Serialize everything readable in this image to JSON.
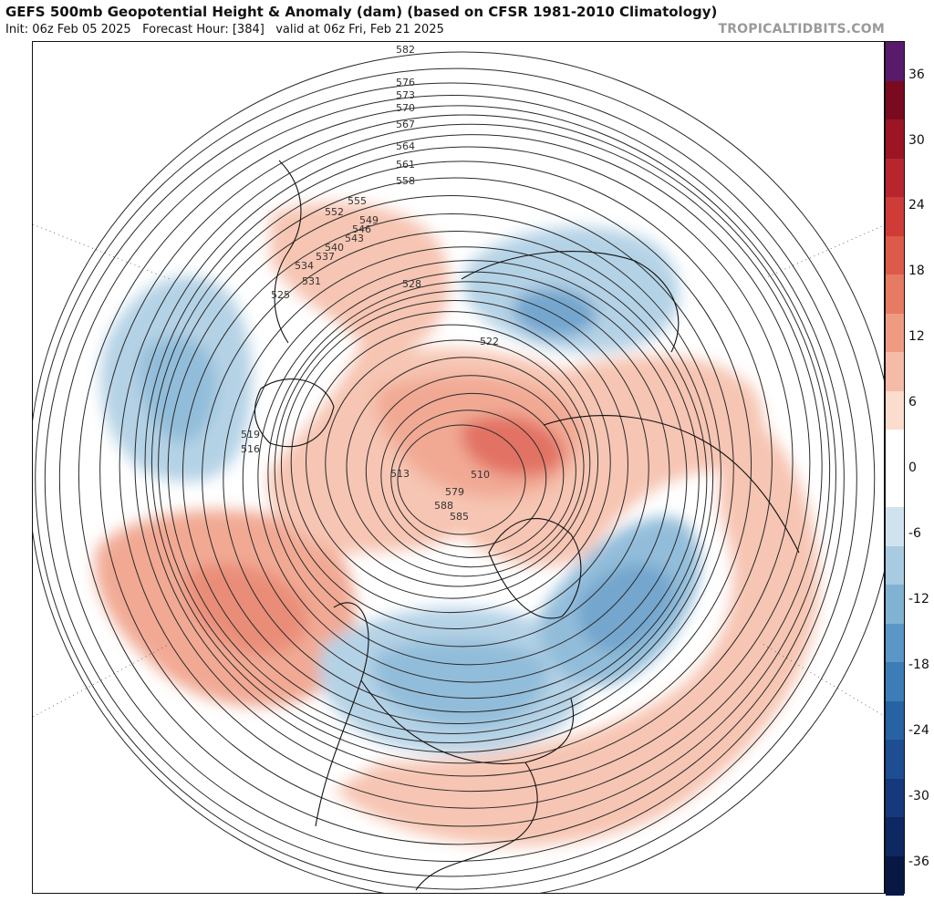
{
  "header": {
    "title": "GEFS 500mb Geopotential Height & Anomaly (dam) (based on CFSR 1981-2010 Climatology)",
    "init": "Init: 06z Feb 05 2025",
    "forecast_hour": "Forecast Hour: [384]",
    "valid": "valid at 06z Fri, Feb 21 2025",
    "credit": "TROPICALTIDBITS.COM"
  },
  "map": {
    "projection": "north-polar-stereographic",
    "contour_color": "#2a2a2a",
    "coastline_color": "#111111",
    "anomaly_positive_color": "#e9886b",
    "anomaly_negative_color": "#4f8fc4",
    "anomalies": [
      {
        "region": "North Pacific / Alaska",
        "sign": "positive",
        "strength": 12
      },
      {
        "region": "Arctic / Siberia",
        "sign": "positive",
        "strength": 12
      },
      {
        "region": "Hudson Bay / Eastern Canada",
        "sign": "negative",
        "strength": -18
      },
      {
        "region": "West of Greenland / Baffin",
        "sign": "negative",
        "strength": -18
      },
      {
        "region": "Siberia / Okhotsk",
        "sign": "negative",
        "strength": -12
      },
      {
        "region": "Eastern Europe",
        "sign": "positive",
        "strength": 12
      },
      {
        "region": "North Atlantic",
        "sign": "positive",
        "strength": 6
      }
    ],
    "contour_labels": [
      "582",
      "576",
      "573",
      "570",
      "567",
      "564",
      "561",
      "558",
      "555",
      "552",
      "549",
      "546",
      "543",
      "540",
      "537",
      "534",
      "531",
      "528",
      "525",
      "522",
      "519",
      "516",
      "513",
      "510",
      "579",
      "588",
      "585"
    ]
  },
  "colorbar": {
    "ticks": [
      "36",
      "30",
      "24",
      "18",
      "12",
      "6",
      "0",
      "-6",
      "-12",
      "-18",
      "-24",
      "-30",
      "-36"
    ],
    "colors": [
      "#5a1a6b",
      "#7a0a1f",
      "#9b1525",
      "#b8262d",
      "#cf3c37",
      "#de5a48",
      "#e67a62",
      "#ef9b82",
      "#f5bba6",
      "#fbdccd",
      "#ffffff",
      "#ffffff",
      "#cfe3ef",
      "#a8cbe2",
      "#80b2d4",
      "#5b97c6",
      "#3c7db7",
      "#2762a5",
      "#1d4d92",
      "#15397c",
      "#0e2862",
      "#081845"
    ]
  }
}
